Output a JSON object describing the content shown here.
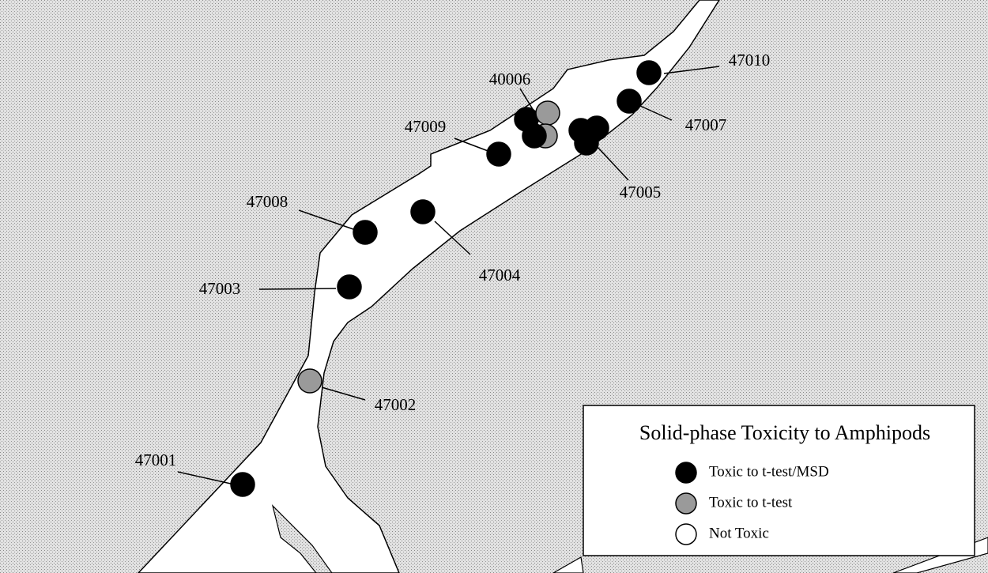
{
  "map": {
    "stations": [
      "47010",
      "40006",
      "47007",
      "47009",
      "47005",
      "47008",
      "47004",
      "47003",
      "47002",
      "47001"
    ],
    "legend": {
      "title": "Solid-phase Toxicity to Amphipods",
      "items": [
        {
          "label": "Toxic to t-test/MSD",
          "color": "#000000"
        },
        {
          "label": "Toxic to t-test",
          "color": "#9a9a9a"
        },
        {
          "label": "Not Toxic",
          "color": "#ffffff"
        }
      ]
    }
  }
}
